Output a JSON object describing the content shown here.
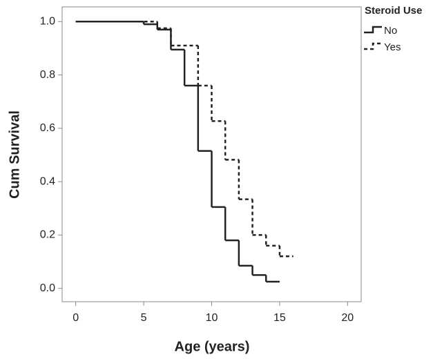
{
  "chart_data": {
    "type": "step",
    "xlabel": "Age (years)",
    "ylabel": "Cum Survival",
    "legend_title": "Steroid Use",
    "legend": "top-right",
    "xlim": [
      -1.0,
      21.0
    ],
    "xticks": [
      0,
      5,
      10,
      15,
      20
    ],
    "ylim": [
      -0.05,
      1.055
    ],
    "yticks": [
      {
        "value": 0,
        "label": "0.0"
      },
      0.2,
      0.4,
      0.6,
      0.8,
      {
        "value": 1,
        "label": "1.0"
      }
    ],
    "series": [
      {
        "name": "No",
        "color": "#222222",
        "line_style": "solid",
        "x": [
          0,
          5,
          6,
          7,
          8,
          9,
          10,
          11,
          12,
          13,
          14,
          15
        ],
        "values": [
          1.0,
          0.99,
          0.97,
          0.895,
          0.76,
          0.515,
          0.305,
          0.18,
          0.085,
          0.05,
          0.025,
          0.025
        ]
      },
      {
        "name": "Yes",
        "color": "#222222",
        "line_style": "dashed",
        "x": [
          0,
          6,
          7,
          9,
          10,
          11,
          12,
          13,
          14,
          15,
          16
        ],
        "values": [
          1.0,
          0.975,
          0.91,
          0.76,
          0.627,
          0.482,
          0.334,
          0.2,
          0.16,
          0.12,
          0.12
        ]
      }
    ]
  }
}
